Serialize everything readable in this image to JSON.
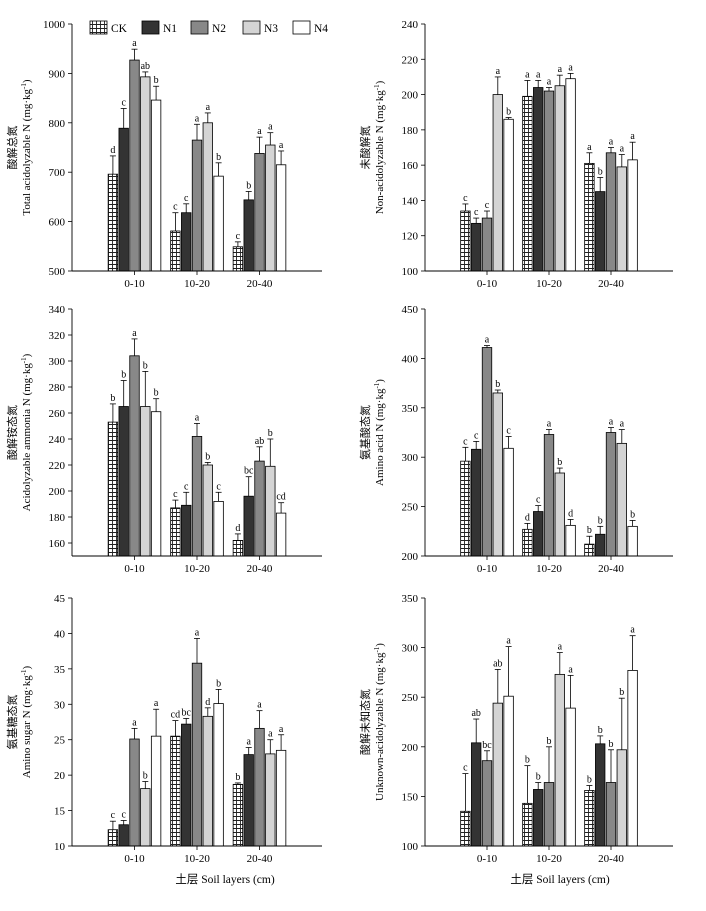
{
  "legend": [
    {
      "label": "CK",
      "fill": "check"
    },
    {
      "label": "N1",
      "fill": "#333333"
    },
    {
      "label": "N2",
      "fill": "#888888"
    },
    {
      "label": "N3",
      "fill": "#d4d4d4"
    },
    {
      "label": "N4",
      "fill": "#ffffff"
    }
  ],
  "xlabel": "土层 Soil layers (cm)",
  "chart_data": [
    {
      "type": "bar",
      "ylabel_cn": "酸解总氮",
      "ylabel_en": "Total acidolyzable N (mg·kg",
      "ylim": [
        500,
        1000
      ],
      "yticks": [
        "500",
        "600",
        "700",
        "800",
        "900",
        "1000"
      ],
      "categories": [
        "0-10",
        "10-20",
        "20-40"
      ],
      "series": [
        {
          "name": "CK",
          "values": [
            696,
            581,
            549
          ],
          "errors": [
            37,
            37,
            10
          ],
          "letters": [
            "d",
            "c",
            "c"
          ]
        },
        {
          "name": "N1",
          "values": [
            789,
            618,
            644
          ],
          "errors": [
            40,
            18,
            17
          ],
          "letters": [
            "c",
            "c",
            "b"
          ]
        },
        {
          "name": "N2",
          "values": [
            927,
            765,
            738
          ],
          "errors": [
            22,
            32,
            33
          ],
          "letters": [
            "a",
            "a",
            "a"
          ]
        },
        {
          "name": "N3",
          "values": [
            893,
            800,
            755
          ],
          "errors": [
            10,
            20,
            25
          ],
          "letters": [
            "ab",
            "a",
            "a"
          ]
        },
        {
          "name": "N4",
          "values": [
            846,
            692,
            715
          ],
          "errors": [
            28,
            27,
            28
          ],
          "letters": [
            "b",
            "b",
            "a"
          ]
        }
      ]
    },
    {
      "type": "bar",
      "ylabel_cn": "未酸解氮",
      "ylabel_en": "Non-acidolyzable N (mg·kg",
      "ylim": [
        100,
        240
      ],
      "yticks": [
        "100",
        "120",
        "140",
        "160",
        "180",
        "200",
        "220",
        "240"
      ],
      "categories": [
        "0-10",
        "10-20",
        "20-40"
      ],
      "series": [
        {
          "name": "CK",
          "values": [
            134,
            199,
            161
          ],
          "errors": [
            4,
            9,
            6
          ],
          "letters": [
            "c",
            "a",
            "a"
          ]
        },
        {
          "name": "N1",
          "values": [
            127,
            204,
            145
          ],
          "errors": [
            3,
            4,
            8
          ],
          "letters": [
            "c",
            "a",
            "b"
          ]
        },
        {
          "name": "N2",
          "values": [
            130,
            202,
            167
          ],
          "errors": [
            4,
            2,
            3
          ],
          "letters": [
            "c",
            "a",
            "a"
          ]
        },
        {
          "name": "N3",
          "values": [
            200,
            205,
            159
          ],
          "errors": [
            10,
            6,
            7
          ],
          "letters": [
            "a",
            "a",
            "a"
          ]
        },
        {
          "name": "N4",
          "values": [
            186,
            209,
            163
          ],
          "errors": [
            1,
            3,
            10
          ],
          "letters": [
            "b",
            "a",
            "a"
          ]
        }
      ]
    },
    {
      "type": "bar",
      "ylabel_cn": "酸解铵态氮",
      "ylabel_en": "Acidolyzable ammonia N (mg·kg",
      "ylim": [
        150,
        340
      ],
      "yticks": [
        "160",
        "180",
        "200",
        "220",
        "240",
        "260",
        "280",
        "300",
        "320",
        "340"
      ],
      "categories": [
        "0-10",
        "10-20",
        "20-40"
      ],
      "series": [
        {
          "name": "CK",
          "values": [
            253,
            187,
            162
          ],
          "errors": [
            14,
            6,
            5
          ],
          "letters": [
            "b",
            "c",
            "d"
          ]
        },
        {
          "name": "N1",
          "values": [
            265,
            189,
            196
          ],
          "errors": [
            20,
            10,
            15
          ],
          "letters": [
            "b",
            "c",
            "bc"
          ]
        },
        {
          "name": "N2",
          "values": [
            304,
            242,
            223
          ],
          "errors": [
            13,
            10,
            11
          ],
          "letters": [
            "a",
            "a",
            "ab"
          ]
        },
        {
          "name": "N3",
          "values": [
            265,
            220,
            219
          ],
          "errors": [
            27,
            2,
            21
          ],
          "letters": [
            "b",
            "b",
            "b"
          ]
        },
        {
          "name": "N4",
          "values": [
            261,
            192,
            183
          ],
          "errors": [
            10,
            7,
            8
          ],
          "letters": [
            "b",
            "c",
            "cd"
          ]
        }
      ]
    },
    {
      "type": "bar",
      "ylabel_cn": "氨基酸态氮",
      "ylabel_en": "Amino acid N (mg·kg",
      "ylim": [
        200,
        450
      ],
      "yticks": [
        "200",
        "250",
        "300",
        "350",
        "400",
        "450"
      ],
      "categories": [
        "0-10",
        "10-20",
        "20-40"
      ],
      "series": [
        {
          "name": "CK",
          "values": [
            296,
            227,
            212
          ],
          "errors": [
            14,
            6,
            8
          ],
          "letters": [
            "c",
            "d",
            "b"
          ]
        },
        {
          "name": "N1",
          "values": [
            308,
            245,
            222
          ],
          "errors": [
            8,
            6,
            8
          ],
          "letters": [
            "c",
            "c",
            "b"
          ]
        },
        {
          "name": "N2",
          "values": [
            411,
            323,
            325
          ],
          "errors": [
            2,
            5,
            5
          ],
          "letters": [
            "a",
            "a",
            "a"
          ]
        },
        {
          "name": "N3",
          "values": [
            365,
            284,
            314
          ],
          "errors": [
            3,
            5,
            14
          ],
          "letters": [
            "b",
            "b",
            "a"
          ]
        },
        {
          "name": "N4",
          "values": [
            309,
            231,
            230
          ],
          "errors": [
            12,
            6,
            6
          ],
          "letters": [
            "c",
            "d",
            "b"
          ]
        }
      ]
    },
    {
      "type": "bar",
      "ylabel_cn": "氨基糖态氮",
      "ylabel_en": "Amino sugar N (mg·kg",
      "ylim": [
        10,
        45
      ],
      "yticks": [
        "10",
        "15",
        "20",
        "25",
        "30",
        "35",
        "40",
        "45"
      ],
      "categories": [
        "0-10",
        "10-20",
        "20-40"
      ],
      "series": [
        {
          "name": "CK",
          "values": [
            12.3,
            25.5,
            18.7
          ],
          "errors": [
            1.2,
            2.2,
            0.2
          ],
          "letters": [
            "c",
            "cd",
            "b"
          ]
        },
        {
          "name": "N1",
          "values": [
            13.0,
            27.2,
            22.9
          ],
          "errors": [
            0.6,
            0.8,
            1.0
          ],
          "letters": [
            "c",
            "bc",
            "a"
          ]
        },
        {
          "name": "N2",
          "values": [
            25.1,
            35.8,
            26.6
          ],
          "errors": [
            1.5,
            3.5,
            2.5
          ],
          "letters": [
            "a",
            "a",
            "a"
          ]
        },
        {
          "name": "N3",
          "values": [
            18.1,
            28.3,
            23.0
          ],
          "errors": [
            1.0,
            1.2,
            2.0
          ],
          "letters": [
            "b",
            "d",
            "a"
          ]
        },
        {
          "name": "N4",
          "values": [
            25.5,
            30.1,
            23.5
          ],
          "errors": [
            3.8,
            2.0,
            2.2
          ],
          "letters": [
            "a",
            "b",
            "a"
          ]
        }
      ]
    },
    {
      "type": "bar",
      "ylabel_cn": "酸解未知态氮",
      "ylabel_en": "Unknown-acidolyzable N (mg·kg",
      "ylim": [
        100,
        350
      ],
      "yticks": [
        "100",
        "150",
        "200",
        "250",
        "300",
        "350"
      ],
      "categories": [
        "0-10",
        "10-20",
        "20-40"
      ],
      "series": [
        {
          "name": "CK",
          "values": [
            135,
            143,
            156
          ],
          "errors": [
            38,
            38,
            5
          ],
          "letters": [
            "c",
            "b",
            "b"
          ]
        },
        {
          "name": "N1",
          "values": [
            204,
            157,
            203
          ],
          "errors": [
            24,
            7,
            8
          ],
          "letters": [
            "ab",
            "b",
            "b"
          ]
        },
        {
          "name": "N2",
          "values": [
            186,
            164,
            164
          ],
          "errors": [
            10,
            36,
            33
          ],
          "letters": [
            "bc",
            "b",
            "b"
          ]
        },
        {
          "name": "N3",
          "values": [
            244,
            273,
            197
          ],
          "errors": [
            34,
            22,
            52
          ],
          "letters": [
            "ab",
            "a",
            "b"
          ]
        },
        {
          "name": "N4",
          "values": [
            251,
            239,
            277
          ],
          "errors": [
            50,
            33,
            35
          ],
          "letters": [
            "a",
            "a",
            "a"
          ]
        }
      ]
    }
  ]
}
